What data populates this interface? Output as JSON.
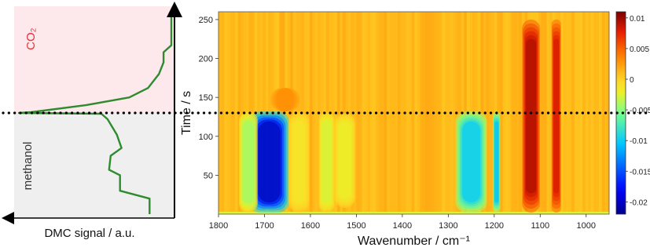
{
  "chart_data": [
    {
      "type": "line",
      "xlabel": "DMC signal / a.u.",
      "ylabel": "",
      "orientation": "vertical-profile",
      "y_axis": "Time / s",
      "x_range": [
        0,
        1
      ],
      "ylim": [
        0,
        260
      ],
      "series": [
        {
          "color": "#2e8b2e",
          "points": [
            {
              "x": 0.86,
              "y": 0
            },
            {
              "x": 0.86,
              "y": 20
            },
            {
              "x": 0.67,
              "y": 30
            },
            {
              "x": 0.67,
              "y": 50
            },
            {
              "x": 0.6,
              "y": 57
            },
            {
              "x": 0.61,
              "y": 75
            },
            {
              "x": 0.68,
              "y": 85
            },
            {
              "x": 0.65,
              "y": 102
            },
            {
              "x": 0.62,
              "y": 112
            },
            {
              "x": 0.59,
              "y": 122
            },
            {
              "x": 0.55,
              "y": 129
            },
            {
              "x": 0.02,
              "y": 130
            },
            {
              "x": 0.1,
              "y": 131
            },
            {
              "x": 0.45,
              "y": 140
            },
            {
              "x": 0.73,
              "y": 150
            },
            {
              "x": 0.85,
              "y": 162
            },
            {
              "x": 0.92,
              "y": 180
            },
            {
              "x": 0.95,
              "y": 195
            },
            {
              "x": 0.95,
              "y": 208
            },
            {
              "x": 1.0,
              "y": 217
            },
            {
              "x": 1.0,
              "y": 250
            },
            {
              "x": 1.0,
              "y": 258
            }
          ]
        }
      ],
      "regions": [
        {
          "label": "CO₂",
          "from": 130,
          "to": 260,
          "color": "#fde9ec",
          "label_color": "#e8303a"
        },
        {
          "label": "methanol",
          "from": 0,
          "to": 130,
          "color": "#efefef",
          "label_color": "#333333"
        }
      ],
      "divider_time": 130
    },
    {
      "type": "heatmap",
      "xlabel": "Wavenumber / cm⁻¹",
      "ylabel": "Time / s",
      "xlim": [
        1800,
        950
      ],
      "ylim": [
        0,
        260
      ],
      "x_ticks": [
        1800,
        1700,
        1600,
        1500,
        1400,
        1300,
        1200,
        1100,
        1000
      ],
      "y_ticks": [
        50,
        100,
        150,
        200,
        250
      ],
      "color_scale": {
        "min": -0.022,
        "max": 0.011,
        "ticks": [
          0.01,
          0.005,
          0,
          -0.005,
          -0.01,
          -0.015,
          -0.02
        ],
        "tick_labels": [
          "0.01",
          "0.005",
          "0",
          "-0.005",
          "-0.01",
          "-0.015",
          "-0.02"
        ],
        "colormap": "jet"
      },
      "background_value": 0.0012,
      "features": [
        {
          "center": 1690,
          "width": 38,
          "t_from": 2,
          "t_to": 132,
          "value": -0.021,
          "kind": "block"
        },
        {
          "center": 1735,
          "width": 18,
          "t_from": 2,
          "t_to": 132,
          "value": -0.0045,
          "kind": "block"
        },
        {
          "center": 1625,
          "width": 20,
          "t_from": 2,
          "t_to": 132,
          "value": -0.0015,
          "kind": "block"
        },
        {
          "center": 1565,
          "width": 15,
          "t_from": 2,
          "t_to": 132,
          "value": -0.003,
          "kind": "block"
        },
        {
          "center": 1250,
          "width": 30,
          "t_from": 2,
          "t_to": 132,
          "value": -0.0105,
          "kind": "block"
        },
        {
          "center": 1195,
          "width": 7,
          "t_from": 2,
          "t_to": 132,
          "value": -0.011,
          "kind": "block"
        },
        {
          "center": 1120,
          "width": 17,
          "t_from": 2,
          "t_to": 250,
          "value": 0.0098,
          "kind": "block"
        },
        {
          "center": 1065,
          "width": 9,
          "t_from": 2,
          "t_to": 250,
          "value": 0.0085,
          "kind": "block"
        },
        {
          "center": 1655,
          "width": 28,
          "t_from": 132,
          "t_to": 162,
          "value": 0.0032,
          "kind": "patch"
        },
        {
          "center": 1525,
          "width": 20,
          "t_from": 8,
          "t_to": 130,
          "value": -0.0022,
          "kind": "block"
        }
      ],
      "dotted_line_time": 130
    }
  ]
}
